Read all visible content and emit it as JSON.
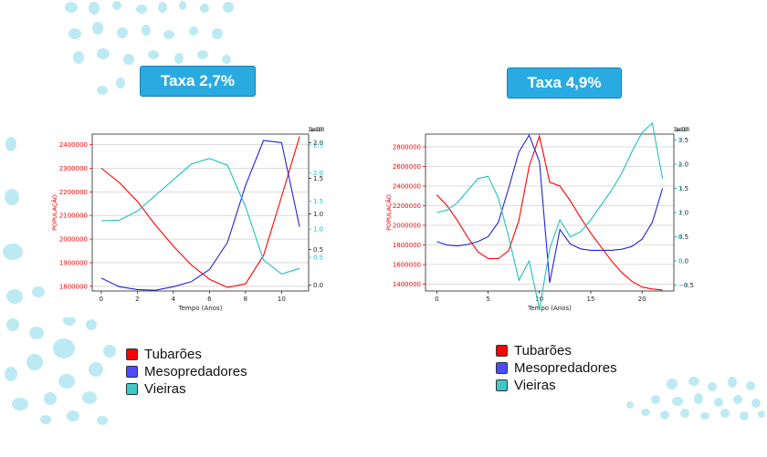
{
  "slide": {
    "panels": [
      {
        "title": "Taxa 2,7%"
      },
      {
        "title": "Taxa 4,9%"
      }
    ],
    "legend": [
      {
        "label": "Tubarões",
        "color": "#ff0000"
      },
      {
        "label": "Mesopredadores",
        "color": "#4b4bff"
      },
      {
        "label": "Vieiras",
        "color": "#40c8c8"
      }
    ]
  },
  "chart_data": [
    {
      "type": "line",
      "x": [
        0,
        1,
        2,
        3,
        4,
        5,
        6,
        7,
        8,
        9,
        10,
        11
      ],
      "xlabel": "Tempo (Anos)",
      "ylabel": "POPULAÇÃO",
      "xlim": [
        -0.5,
        11.5
      ],
      "xticks": [
        "0",
        "2",
        "4",
        "6",
        "8",
        "10"
      ],
      "xtick_values": [
        0,
        2,
        4,
        6,
        8,
        10
      ],
      "ylim": [
        1780000,
        2445000
      ],
      "yticks": [
        "1800000",
        "1900000",
        "2000000",
        "2100000",
        "2200000",
        "2300000",
        "2400000"
      ],
      "ytick_values": [
        1800000,
        1900000,
        2000000,
        2100000,
        2200000,
        2300000,
        2400000
      ],
      "y2lim": [
        -0.08,
        2.12
      ],
      "y2ticks_a": [
        "0.0",
        "0.5",
        "1.0",
        "1.5",
        "2.0"
      ],
      "y2tick_values_a": [
        0,
        0.5,
        1,
        1.5,
        2
      ],
      "y2ticks_b": [
        "0.5",
        "1.0",
        "1.5",
        "2.0",
        "2.5"
      ],
      "y2tick_values_b": [
        0.5,
        1,
        1.5,
        2,
        2.5
      ],
      "y2_scale_b": 0.787,
      "corner_label": "1e10",
      "series": [
        {
          "name": "Tubarões",
          "color": "#ff0000",
          "axis": "left",
          "values": [
            2300000,
            2240000,
            2160000,
            2060000,
            1970000,
            1890000,
            1830000,
            1795000,
            1810000,
            1930000,
            2180000,
            2435000
          ]
        },
        {
          "name": "Mesopredadores",
          "color": "#2222dd",
          "axis": "right",
          "values": [
            0.1,
            -0.02,
            -0.06,
            -0.07,
            -0.02,
            0.05,
            0.22,
            0.6,
            1.4,
            2.03,
            2.0,
            0.82
          ]
        },
        {
          "name": "Vieiras",
          "color": "#20c0c0",
          "axis": "right_b",
          "values": [
            1.15,
            1.16,
            1.32,
            1.6,
            1.88,
            2.16,
            2.26,
            2.14,
            1.4,
            0.45,
            0.2,
            0.3
          ]
        }
      ]
    },
    {
      "type": "line",
      "x": [
        0,
        1,
        2,
        3,
        4,
        5,
        6,
        7,
        8,
        9,
        10,
        11,
        12,
        13,
        14,
        15,
        16,
        17,
        18,
        19,
        20,
        21,
        22
      ],
      "xlabel": "Tempo (Anos)",
      "ylabel": "POPULAÇÃO",
      "xlim": [
        -1.1,
        23.1
      ],
      "xticks": [
        "0",
        "5",
        "10",
        "15",
        "20"
      ],
      "xtick_values": [
        0,
        5,
        10,
        15,
        20
      ],
      "ylim": [
        1330000,
        2930000
      ],
      "yticks": [
        "1400000",
        "1600000",
        "1800000",
        "2000000",
        "2200000",
        "2400000",
        "2600000",
        "2800000"
      ],
      "ytick_values": [
        1400000,
        1600000,
        1800000,
        2000000,
        2200000,
        2400000,
        2600000,
        2800000
      ],
      "y2lim": [
        -0.62,
        2.62
      ],
      "y2ticks_a": [
        "−0.5",
        "0.0",
        "0.5",
        "1.0",
        "1.5",
        "2.0",
        "2.5"
      ],
      "y2tick_values_a": [
        -0.5,
        0,
        0.5,
        1,
        1.5,
        2,
        2.5
      ],
      "y2ticks_b": [
        "−1",
        "0",
        "1",
        "2",
        "3",
        "4",
        "5"
      ],
      "y2tick_values_b": [
        -1,
        0,
        1,
        2,
        3,
        4,
        5
      ],
      "y2_scale_b": 0.5,
      "corner_label": "1e10",
      "series": [
        {
          "name": "Tubarões",
          "color": "#ff0000",
          "axis": "left",
          "values": [
            2310000,
            2200000,
            2050000,
            1880000,
            1730000,
            1660000,
            1660000,
            1740000,
            2050000,
            2600000,
            2910000,
            2440000,
            2400000,
            2250000,
            2080000,
            1920000,
            1780000,
            1640000,
            1520000,
            1430000,
            1370000,
            1350000,
            1340000
          ]
        },
        {
          "name": "Mesopredadores",
          "color": "#2222dd",
          "axis": "right",
          "values": [
            0.4,
            0.33,
            0.31,
            0.34,
            0.4,
            0.5,
            0.8,
            1.5,
            2.25,
            2.6,
            2.05,
            -0.45,
            0.65,
            0.35,
            0.25,
            0.22,
            0.22,
            0.22,
            0.24,
            0.3,
            0.45,
            0.8,
            1.5
          ]
        },
        {
          "name": "Vieiras",
          "color": "#20c0c0",
          "axis": "right_b",
          "values": [
            2.0,
            2.1,
            2.4,
            2.9,
            3.4,
            3.5,
            2.6,
            1.0,
            -0.8,
            0.0,
            -2.0,
            0.5,
            1.7,
            1.0,
            1.2,
            1.7,
            2.3,
            2.9,
            3.6,
            4.5,
            5.3,
            5.7,
            3.4
          ]
        }
      ]
    }
  ]
}
